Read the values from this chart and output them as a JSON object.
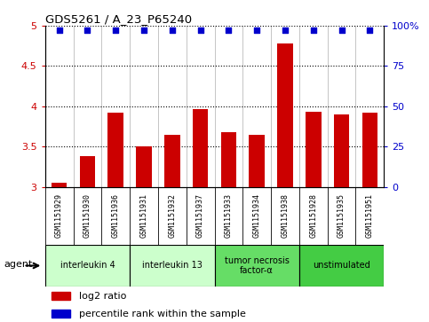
{
  "title": "GDS5261 / A_23_P65240",
  "samples": [
    "GSM1151929",
    "GSM1151930",
    "GSM1151936",
    "GSM1151931",
    "GSM1151932",
    "GSM1151937",
    "GSM1151933",
    "GSM1151934",
    "GSM1151938",
    "GSM1151928",
    "GSM1151935",
    "GSM1151951"
  ],
  "log2_values": [
    3.05,
    3.38,
    3.92,
    3.5,
    3.65,
    3.97,
    3.68,
    3.65,
    4.78,
    3.93,
    3.9,
    3.92
  ],
  "bar_color": "#CC0000",
  "dot_color": "#0000CC",
  "ylim_left": [
    3.0,
    5.0
  ],
  "yticks_left": [
    3.0,
    3.5,
    4.0,
    4.5,
    5.0
  ],
  "ytick_labels_left": [
    "3",
    "3.5",
    "4",
    "4.5",
    "5"
  ],
  "yticks_right": [
    0,
    25,
    50,
    75,
    100
  ],
  "ytick_labels_right": [
    "0",
    "25",
    "50",
    "75",
    "100%"
  ],
  "agents": [
    {
      "label": "interleukin 4",
      "start": 0,
      "end": 2,
      "color": "#ccffcc"
    },
    {
      "label": "interleukin 13",
      "start": 3,
      "end": 5,
      "color": "#ccffcc"
    },
    {
      "label": "tumor necrosis\nfactor-α",
      "start": 6,
      "end": 8,
      "color": "#66dd66"
    },
    {
      "label": "unstimulated",
      "start": 9,
      "end": 11,
      "color": "#44cc44"
    }
  ],
  "agent_label": "agent",
  "legend_items": [
    {
      "label": "log2 ratio",
      "color": "#CC0000"
    },
    {
      "label": "percentile rank within the sample",
      "color": "#0000CC"
    }
  ],
  "bg_color": "#ffffff",
  "plot_bg_color": "#ffffff",
  "sample_bg_color": "#c8c8c8",
  "dotted_lines": [
    3.5,
    4.0,
    4.5,
    5.0
  ]
}
